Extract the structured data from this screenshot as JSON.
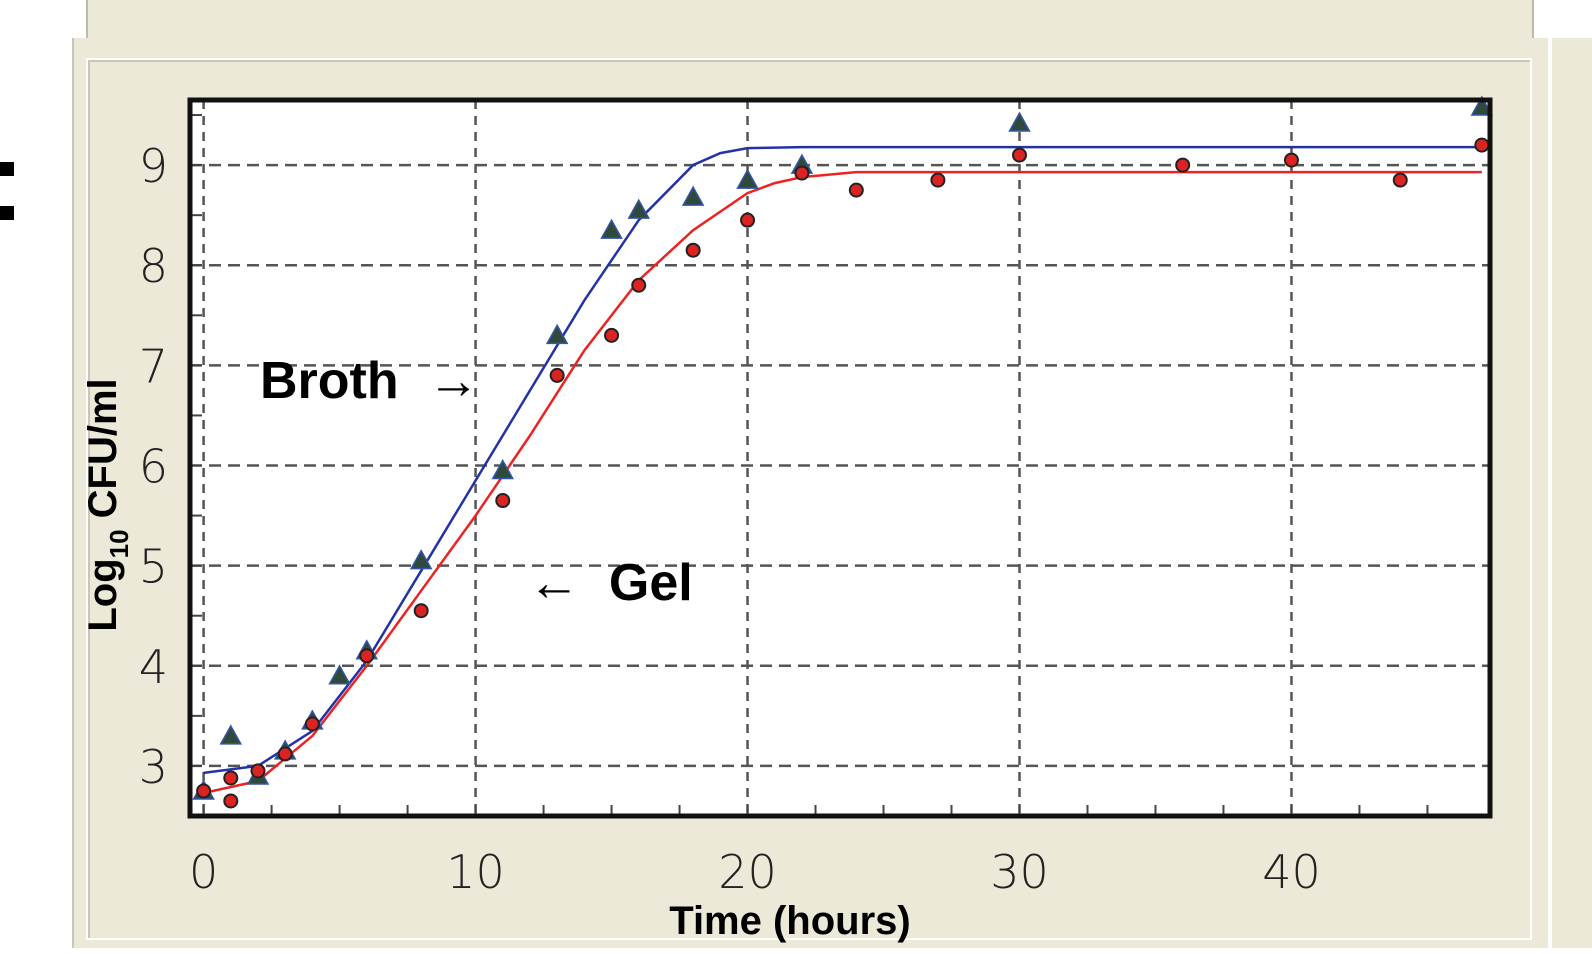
{
  "chart_data": {
    "type": "scatter",
    "xlabel": "Time (hours)",
    "ylabel_main": "Log",
    "ylabel_sub": "10",
    "ylabel_rest": " CFU/ml",
    "xlim": [
      -0.5,
      47.3
    ],
    "ylim": [
      2.5,
      9.65
    ],
    "xticks": [
      0,
      10,
      20,
      30,
      40
    ],
    "yticks": [
      3,
      4,
      5,
      6,
      7,
      8,
      9
    ],
    "grid": true,
    "annotations": [
      {
        "text": "Broth  →",
        "points_to": "broth"
      },
      {
        "text": "←  Gel",
        "points_to": "gel"
      }
    ],
    "series": [
      {
        "key": "broth",
        "color": "#2a3b5a",
        "line_color": "#2233aa",
        "marker": "triangle",
        "points": [
          [
            0,
            2.75
          ],
          [
            1,
            3.3
          ],
          [
            2,
            2.9
          ],
          [
            3,
            3.15
          ],
          [
            4,
            3.45
          ],
          [
            5,
            3.9
          ],
          [
            6,
            4.15
          ],
          [
            8,
            5.05
          ],
          [
            11,
            5.95
          ],
          [
            13,
            7.3
          ],
          [
            15,
            8.35
          ],
          [
            16,
            8.55
          ],
          [
            18,
            8.68
          ],
          [
            20,
            8.85
          ],
          [
            22,
            9.0
          ],
          [
            30,
            9.42
          ],
          [
            47,
            9.58
          ]
        ],
        "fit": [
          [
            0,
            2.93
          ],
          [
            2,
            3.0
          ],
          [
            4,
            3.35
          ],
          [
            6,
            4.05
          ],
          [
            8,
            4.95
          ],
          [
            10,
            5.85
          ],
          [
            12,
            6.75
          ],
          [
            14,
            7.65
          ],
          [
            16,
            8.45
          ],
          [
            18,
            9.0
          ],
          [
            19,
            9.12
          ],
          [
            20,
            9.17
          ],
          [
            22,
            9.18
          ],
          [
            47,
            9.18
          ]
        ]
      },
      {
        "key": "gel",
        "color": "#cc2222",
        "line_color": "#ee2222",
        "marker": "circle",
        "points": [
          [
            0,
            2.75
          ],
          [
            1,
            2.65
          ],
          [
            1,
            2.88
          ],
          [
            2,
            2.95
          ],
          [
            3,
            3.12
          ],
          [
            4,
            3.42
          ],
          [
            6,
            4.1
          ],
          [
            8,
            4.55
          ],
          [
            11,
            5.65
          ],
          [
            13,
            6.9
          ],
          [
            15,
            7.3
          ],
          [
            16,
            7.8
          ],
          [
            18,
            8.15
          ],
          [
            20,
            8.45
          ],
          [
            22,
            8.92
          ],
          [
            24,
            8.75
          ],
          [
            27,
            8.85
          ],
          [
            30,
            9.1
          ],
          [
            36,
            9.0
          ],
          [
            40,
            9.05
          ],
          [
            44,
            8.85
          ],
          [
            47,
            9.2
          ]
        ],
        "fit": [
          [
            0,
            2.73
          ],
          [
            2,
            2.85
          ],
          [
            4,
            3.3
          ],
          [
            6,
            4.0
          ],
          [
            8,
            4.75
          ],
          [
            10,
            5.5
          ],
          [
            12,
            6.3
          ],
          [
            14,
            7.15
          ],
          [
            16,
            7.85
          ],
          [
            18,
            8.35
          ],
          [
            20,
            8.72
          ],
          [
            21,
            8.82
          ],
          [
            22,
            8.88
          ],
          [
            24,
            8.93
          ],
          [
            47,
            8.93
          ]
        ]
      }
    ]
  }
}
